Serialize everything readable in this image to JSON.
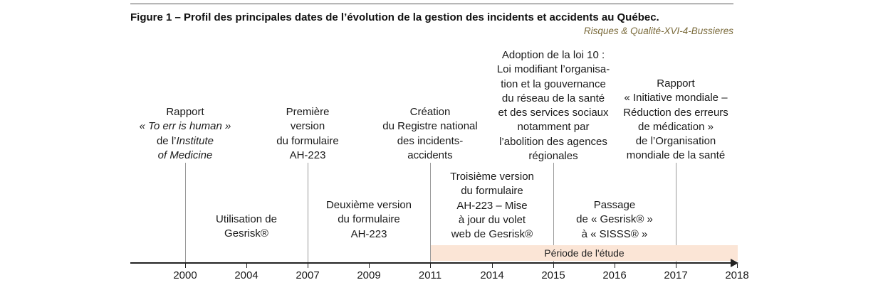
{
  "header": {
    "title": "Figure 1 – Profil des principales dates de l’évolution de la gestion des incidents et accidents au Québec.",
    "source": "Risques & Qualité-XVI-4-Bussieres"
  },
  "axis": {
    "ticks": [
      "2000",
      "2004",
      "2007",
      "2009",
      "2011",
      "2014",
      "2015",
      "2016",
      "2017",
      "2018"
    ]
  },
  "period": {
    "label": "Période de l'étude"
  },
  "events_top": [
    {
      "lines": [
        "Rapport",
        "« To err is human »",
        "de l’Institute",
        "of Medicine"
      ]
    },
    {
      "lines": [
        "Première",
        "version",
        "du formulaire",
        "AH-223"
      ]
    },
    {
      "lines": [
        "Création",
        "du Registre national",
        "des incidents-",
        "accidents"
      ]
    },
    {
      "lines": [
        "Adoption de la loi 10 :",
        "Loi modifiant l’organisa-",
        "tion et la gouvernance",
        "du réseau de la santé",
        "et des services sociaux",
        "notamment par",
        "l’abolition des agences",
        "régionales"
      ]
    },
    {
      "lines": [
        "Rapport",
        "« Initiative mondiale –",
        "Réduction des erreurs",
        "de médication »",
        "de l’Organisation",
        "mondiale de la santé"
      ]
    }
  ],
  "events_bottom": [
    {
      "lines": [
        "Utilisation de",
        "Gesrisk®"
      ]
    },
    {
      "lines": [
        "Deuxième version",
        "du formulaire",
        "AH-223"
      ]
    },
    {
      "lines": [
        "Troisième version",
        "du formulaire",
        "AH-223 – Mise",
        "à jour du volet",
        "web de Gesrisk®"
      ]
    },
    {
      "lines": [
        "Passage",
        "de « Gesrisk® »",
        "à « SISSS® »"
      ]
    }
  ]
}
